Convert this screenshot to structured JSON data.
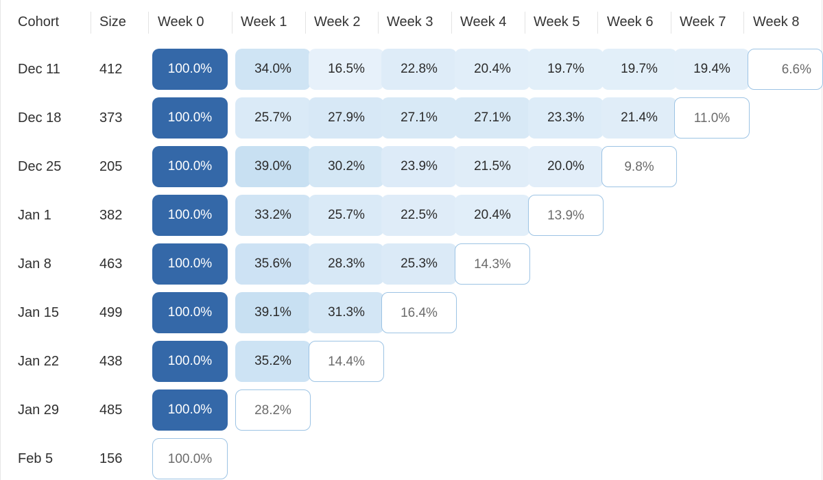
{
  "headers": [
    "Cohort",
    "Size",
    "Week 0",
    "Week 1",
    "Week 2",
    "Week 3",
    "Week 4",
    "Week 5",
    "Week 6",
    "Week 7",
    "Week 8"
  ],
  "colors": {
    "strong": "#3468a8",
    "outline_border": "#9cc3e4",
    "text_dark": "#2b2b2b",
    "text_muted": "#6b6b6b"
  },
  "chart_data": {
    "type": "heatmap",
    "title": "",
    "xlabel": "",
    "ylabel": "",
    "x": [
      "Week 0",
      "Week 1",
      "Week 2",
      "Week 3",
      "Week 4",
      "Week 5",
      "Week 6",
      "Week 7",
      "Week 8"
    ],
    "rows": [
      {
        "cohort": "Dec 11",
        "size": "412",
        "values": [
          "100.0%",
          "34.0%",
          "16.5%",
          "22.8%",
          "20.4%",
          "19.7%",
          "19.7%",
          "19.4%",
          "6.6%"
        ]
      },
      {
        "cohort": "Dec 18",
        "size": "373",
        "values": [
          "100.0%",
          "25.7%",
          "27.9%",
          "27.1%",
          "27.1%",
          "23.3%",
          "21.4%",
          "11.0%"
        ]
      },
      {
        "cohort": "Dec 25",
        "size": "205",
        "values": [
          "100.0%",
          "39.0%",
          "30.2%",
          "23.9%",
          "21.5%",
          "20.0%",
          "9.8%"
        ]
      },
      {
        "cohort": "Jan 1",
        "size": "382",
        "values": [
          "100.0%",
          "33.2%",
          "25.7%",
          "22.5%",
          "20.4%",
          "13.9%"
        ]
      },
      {
        "cohort": "Jan 8",
        "size": "463",
        "values": [
          "100.0%",
          "35.6%",
          "28.3%",
          "25.3%",
          "14.3%"
        ]
      },
      {
        "cohort": "Jan 15",
        "size": "499",
        "values": [
          "100.0%",
          "39.1%",
          "31.3%",
          "16.4%"
        ]
      },
      {
        "cohort": "Jan 22",
        "size": "438",
        "values": [
          "100.0%",
          "35.2%",
          "14.4%"
        ]
      },
      {
        "cohort": "Jan 29",
        "size": "485",
        "values": [
          "100.0%",
          "28.2%"
        ]
      },
      {
        "cohort": "Feb 5",
        "size": "156",
        "values": [
          "100.0%"
        ]
      }
    ]
  }
}
